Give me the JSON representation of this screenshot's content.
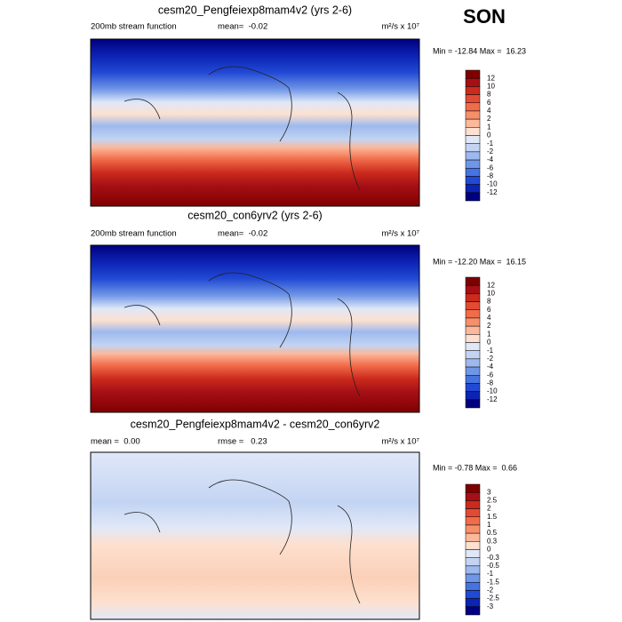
{
  "season": "SON",
  "panels": [
    {
      "title": "cesm20_Pengfeiexp8mam4v2 (yrs 2-6)",
      "subtitle_left": "200mb stream function",
      "subtitle_center": "mean=  -0.02",
      "units": "m²/s x 10⁷",
      "minmax": "Min = -12.84 Max =  16.23",
      "colorbar": {
        "labels": [
          "12",
          "10",
          "8",
          "6",
          "4",
          "2",
          "1",
          "0",
          "-1",
          "-2",
          "-4",
          "-6",
          "-8",
          "-10",
          "-12"
        ],
        "colors": [
          "#7f0000",
          "#a50f15",
          "#cb2a1c",
          "#e34a33",
          "#f16c4a",
          "#f6906a",
          "#fbb89a",
          "#fde0cf",
          "#e0e8f8",
          "#c3d4f3",
          "#9db9ee",
          "#7096e6",
          "#4673e0",
          "#2149d4",
          "#0c23b4",
          "#00007f"
        ]
      }
    },
    {
      "title": "cesm20_con6yrv2 (yrs 2-6)",
      "subtitle_left": "200mb stream function",
      "subtitle_center": "mean=  -0.02",
      "units": "m²/s x 10⁷",
      "minmax": "Min = -12.20 Max =  16.15",
      "colorbar": {
        "labels": [
          "12",
          "10",
          "8",
          "6",
          "4",
          "2",
          "1",
          "0",
          "-1",
          "-2",
          "-4",
          "-6",
          "-8",
          "-10",
          "-12"
        ],
        "colors": [
          "#7f0000",
          "#a50f15",
          "#cb2a1c",
          "#e34a33",
          "#f16c4a",
          "#f6906a",
          "#fbb89a",
          "#fde0cf",
          "#e0e8f8",
          "#c3d4f3",
          "#9db9ee",
          "#7096e6",
          "#4673e0",
          "#2149d4",
          "#0c23b4",
          "#00007f"
        ]
      }
    },
    {
      "title": "cesm20_Pengfeiexp8mam4v2 - cesm20_con6yrv2",
      "subtitle_left": "mean =  0.00",
      "subtitle_center": "rmse =   0.23",
      "units": "m²/s x 10⁷",
      "minmax": "Min = -0.78 Max =  0.66",
      "colorbar": {
        "labels": [
          "3",
          "2.5",
          "2",
          "1.5",
          "1",
          "0.5",
          "0.3",
          "0",
          "-0.3",
          "-0.5",
          "-1",
          "-1.5",
          "-2",
          "-2.5",
          "-3"
        ],
        "colors": [
          "#7f0000",
          "#a50f15",
          "#cb2a1c",
          "#e34a33",
          "#f16c4a",
          "#f6906a",
          "#fbb89a",
          "#fde0cf",
          "#e0e8f8",
          "#c3d4f3",
          "#9db9ee",
          "#7096e6",
          "#4673e0",
          "#2149d4",
          "#0c23b4",
          "#00007f"
        ]
      }
    }
  ]
}
